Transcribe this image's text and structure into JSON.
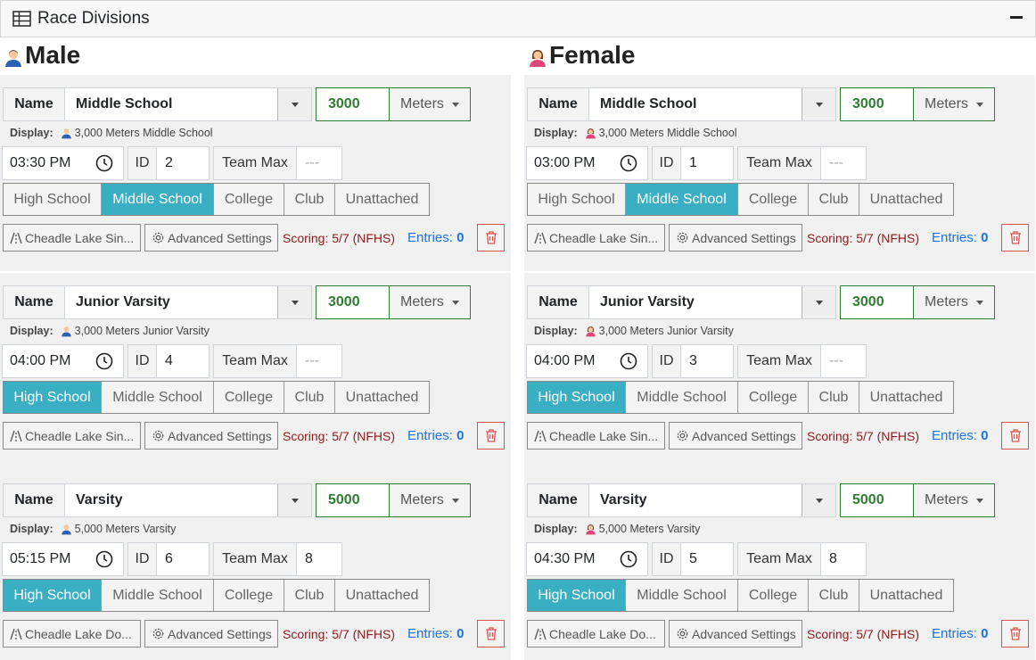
{
  "panel": {
    "title": "Race Divisions",
    "table_icon": "table-icon",
    "collapse_icon": "minus-icon"
  },
  "columns": [
    {
      "gender": "Male",
      "gender_icon": "male-user-icon",
      "races": [
        {
          "name_label": "Name",
          "name": "Middle School",
          "distance": "3000",
          "unit": "Meters",
          "display_label": "Display:",
          "display": "3,000 Meters Middle School",
          "time": "03:30 PM",
          "id_label": "ID",
          "id": "2",
          "team_max_label": "Team Max",
          "team_max": "---",
          "levels": [
            "High School",
            "Middle School",
            "College",
            "Club",
            "Unattached"
          ],
          "active_level": "Middle School",
          "venue": "Cheadle Lake Sin...",
          "advanced": "Advanced Settings",
          "scoring": "Scoring: 5/7 (NFHS)",
          "entries_label": "Entries:",
          "entries": "0"
        },
        {
          "name_label": "Name",
          "name": "Junior Varsity",
          "distance": "3000",
          "unit": "Meters",
          "display_label": "Display:",
          "display": "3,000 Meters Junior Varsity",
          "time": "04:00 PM",
          "id_label": "ID",
          "id": "4",
          "team_max_label": "Team Max",
          "team_max": "---",
          "levels": [
            "High School",
            "Middle School",
            "College",
            "Club",
            "Unattached"
          ],
          "active_level": "High School",
          "venue": "Cheadle Lake Sin...",
          "advanced": "Advanced Settings",
          "scoring": "Scoring: 5/7 (NFHS)",
          "entries_label": "Entries:",
          "entries": "0"
        },
        {
          "name_label": "Name",
          "name": "Varsity",
          "distance": "5000",
          "unit": "Meters",
          "display_label": "Display:",
          "display": "5,000 Meters Varsity",
          "time": "05:15 PM",
          "id_label": "ID",
          "id": "6",
          "team_max_label": "Team Max",
          "team_max": "8",
          "levels": [
            "High School",
            "Middle School",
            "College",
            "Club",
            "Unattached"
          ],
          "active_level": "High School",
          "venue": "Cheadle Lake Do...",
          "advanced": "Advanced Settings",
          "scoring": "Scoring: 5/7 (NFHS)",
          "entries_label": "Entries:",
          "entries": "0"
        }
      ]
    },
    {
      "gender": "Female",
      "gender_icon": "female-user-icon",
      "races": [
        {
          "name_label": "Name",
          "name": "Middle School",
          "distance": "3000",
          "unit": "Meters",
          "display_label": "Display:",
          "display": "3,000 Meters Middle School",
          "time": "03:00 PM",
          "id_label": "ID",
          "id": "1",
          "team_max_label": "Team Max",
          "team_max": "---",
          "levels": [
            "High School",
            "Middle School",
            "College",
            "Club",
            "Unattached"
          ],
          "active_level": "Middle School",
          "venue": "Cheadle Lake Sin...",
          "advanced": "Advanced Settings",
          "scoring": "Scoring: 5/7 (NFHS)",
          "entries_label": "Entries:",
          "entries": "0"
        },
        {
          "name_label": "Name",
          "name": "Junior Varsity",
          "distance": "3000",
          "unit": "Meters",
          "display_label": "Display:",
          "display": "3,000 Meters Junior Varsity",
          "time": "04:00 PM",
          "id_label": "ID",
          "id": "3",
          "team_max_label": "Team Max",
          "team_max": "---",
          "levels": [
            "High School",
            "Middle School",
            "College",
            "Club",
            "Unattached"
          ],
          "active_level": "High School",
          "venue": "Cheadle Lake Sin...",
          "advanced": "Advanced Settings",
          "scoring": "Scoring: 5/7 (NFHS)",
          "entries_label": "Entries:",
          "entries": "0"
        },
        {
          "name_label": "Name",
          "name": "Varsity",
          "distance": "5000",
          "unit": "Meters",
          "display_label": "Display:",
          "display": "5,000 Meters Varsity",
          "time": "04:30 PM",
          "id_label": "ID",
          "id": "5",
          "team_max_label": "Team Max",
          "team_max": "8",
          "levels": [
            "High School",
            "Middle School",
            "College",
            "Club",
            "Unattached"
          ],
          "active_level": "High School",
          "venue": "Cheadle Lake Do...",
          "advanced": "Advanced Settings",
          "scoring": "Scoring: 5/7 (NFHS)",
          "entries_label": "Entries:",
          "entries": "0"
        }
      ]
    }
  ],
  "colors": {
    "active_level": "#3aafc3",
    "distance": "#2e7d32",
    "scoring": "#8b1a1a",
    "entries": "#1a73e8",
    "delete": "#d9534f"
  }
}
